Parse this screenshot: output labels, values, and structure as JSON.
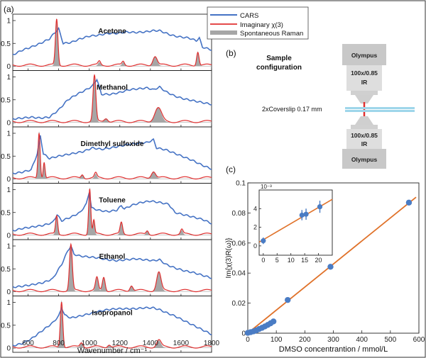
{
  "figure": {
    "panel_labels": [
      "(a)",
      "(b)",
      "(c)"
    ]
  },
  "legend": {
    "items": [
      {
        "label": "CARS",
        "color": "#4472c4",
        "style": "line"
      },
      {
        "label": "Imaginary χ(3)",
        "color": "#e03030",
        "style": "line"
      },
      {
        "label": "Spontaneous Raman",
        "color": "#a6a6a6",
        "style": "patch"
      }
    ]
  },
  "spectra": {
    "xlabel": "Wavenumber / cm⁻¹",
    "xlim": [
      500,
      1800
    ],
    "xticks": [
      600,
      800,
      1000,
      1200,
      1400,
      1600,
      1800
    ],
    "yticks": [
      "0",
      "0.5",
      "1"
    ],
    "panels": [
      {
        "name": "Acetone",
        "peaks": [
          [
            787,
            1,
            8
          ],
          [
            1066,
            0.08,
            8
          ],
          [
            1222,
            0.08,
            8
          ],
          [
            1430,
            0.2,
            14
          ],
          [
            1710,
            0.3,
            8
          ]
        ],
        "cars": [
          [
            500,
            0.25
          ],
          [
            560,
            0.35
          ],
          [
            620,
            0.42
          ],
          [
            680,
            0.5
          ],
          [
            740,
            0.6
          ],
          [
            770,
            0.72
          ],
          [
            800,
            0.82
          ],
          [
            830,
            0.5
          ],
          [
            880,
            0.52
          ],
          [
            940,
            0.6
          ],
          [
            1000,
            0.66
          ],
          [
            1060,
            0.68
          ],
          [
            1120,
            0.72
          ],
          [
            1180,
            0.72
          ],
          [
            1240,
            0.75
          ],
          [
            1300,
            0.74
          ],
          [
            1360,
            0.75
          ],
          [
            1420,
            0.78
          ],
          [
            1460,
            0.78
          ],
          [
            1520,
            0.7
          ],
          [
            1560,
            0.66
          ],
          [
            1600,
            0.64
          ],
          [
            1650,
            0.62
          ],
          [
            1700,
            0.56
          ],
          [
            1720,
            0.62
          ],
          [
            1740,
            0.42
          ],
          [
            1800,
            0.36
          ]
        ]
      },
      {
        "name": "Methanol",
        "peaks": [
          [
            1034,
            1,
            9
          ],
          [
            1110,
            0.08,
            12
          ],
          [
            1450,
            0.3,
            22
          ]
        ],
        "cars": [
          [
            500,
            0.08
          ],
          [
            560,
            0.1
          ],
          [
            620,
            0.12
          ],
          [
            680,
            0.1
          ],
          [
            740,
            0.12
          ],
          [
            800,
            0.28
          ],
          [
            860,
            0.5
          ],
          [
            920,
            0.62
          ],
          [
            980,
            0.72
          ],
          [
            1020,
            0.8
          ],
          [
            1050,
            0.95
          ],
          [
            1080,
            0.62
          ],
          [
            1140,
            0.62
          ],
          [
            1200,
            0.66
          ],
          [
            1260,
            0.72
          ],
          [
            1320,
            0.74
          ],
          [
            1380,
            0.76
          ],
          [
            1420,
            0.72
          ],
          [
            1460,
            0.78
          ],
          [
            1500,
            0.68
          ],
          [
            1560,
            0.58
          ],
          [
            1620,
            0.52
          ],
          [
            1680,
            0.48
          ],
          [
            1740,
            0.44
          ],
          [
            1800,
            0.4
          ]
        ]
      },
      {
        "name": "Dimethyl sulfoxide",
        "peaks": [
          [
            672,
            1,
            7
          ],
          [
            705,
            0.35,
            6
          ],
          [
            955,
            0.08,
            8
          ],
          [
            1042,
            0.1,
            8
          ],
          [
            1420,
            0.15,
            14
          ]
        ],
        "cars": [
          [
            500,
            0.12
          ],
          [
            560,
            0.15
          ],
          [
            620,
            0.2
          ],
          [
            660,
            0.55
          ],
          [
            680,
            0.95
          ],
          [
            700,
            0.55
          ],
          [
            740,
            0.45
          ],
          [
            800,
            0.5
          ],
          [
            880,
            0.55
          ],
          [
            960,
            0.6
          ],
          [
            1020,
            0.68
          ],
          [
            1080,
            0.65
          ],
          [
            1140,
            0.68
          ],
          [
            1200,
            0.72
          ],
          [
            1260,
            0.76
          ],
          [
            1320,
            0.78
          ],
          [
            1380,
            0.8
          ],
          [
            1420,
            0.86
          ],
          [
            1440,
            0.68
          ],
          [
            1500,
            0.64
          ],
          [
            1560,
            0.56
          ],
          [
            1620,
            0.48
          ],
          [
            1680,
            0.4
          ],
          [
            1740,
            0.3
          ],
          [
            1800,
            0.22
          ]
        ]
      },
      {
        "name": "Toluene",
        "peaks": [
          [
            787,
            0.4,
            7
          ],
          [
            1003,
            1,
            7
          ],
          [
            1030,
            0.3,
            6
          ],
          [
            1210,
            0.25,
            8
          ],
          [
            1380,
            0.08,
            8
          ],
          [
            1605,
            0.1,
            8
          ]
        ],
        "cars": [
          [
            500,
            0.1
          ],
          [
            560,
            0.15
          ],
          [
            620,
            0.18
          ],
          [
            700,
            0.22
          ],
          [
            760,
            0.28
          ],
          [
            790,
            0.45
          ],
          [
            820,
            0.32
          ],
          [
            880,
            0.4
          ],
          [
            940,
            0.5
          ],
          [
            980,
            0.68
          ],
          [
            1000,
            0.95
          ],
          [
            1015,
            0.6
          ],
          [
            1060,
            0.55
          ],
          [
            1120,
            0.52
          ],
          [
            1180,
            0.55
          ],
          [
            1210,
            0.65
          ],
          [
            1230,
            0.58
          ],
          [
            1280,
            0.66
          ],
          [
            1340,
            0.72
          ],
          [
            1400,
            0.75
          ],
          [
            1460,
            0.72
          ],
          [
            1520,
            0.68
          ],
          [
            1560,
            0.5
          ],
          [
            1620,
            0.45
          ],
          [
            1680,
            0.4
          ],
          [
            1740,
            0.35
          ],
          [
            1800,
            0.26
          ]
        ]
      },
      {
        "name": "Ethanol",
        "peaks": [
          [
            880,
            1,
            9
          ],
          [
            1050,
            0.28,
            9
          ],
          [
            1095,
            0.3,
            9
          ],
          [
            1276,
            0.12,
            10
          ],
          [
            1455,
            0.4,
            14
          ]
        ],
        "cars": [
          [
            500,
            0.1
          ],
          [
            560,
            0.12
          ],
          [
            620,
            0.15
          ],
          [
            700,
            0.2
          ],
          [
            760,
            0.28
          ],
          [
            820,
            0.6
          ],
          [
            860,
            0.9
          ],
          [
            880,
            1.0
          ],
          [
            900,
            0.82
          ],
          [
            940,
            0.78
          ],
          [
            1000,
            0.76
          ],
          [
            1060,
            0.74
          ],
          [
            1120,
            0.7
          ],
          [
            1180,
            0.68
          ],
          [
            1240,
            0.7
          ],
          [
            1300,
            0.72
          ],
          [
            1360,
            0.7
          ],
          [
            1420,
            0.68
          ],
          [
            1460,
            0.7
          ],
          [
            1500,
            0.6
          ],
          [
            1560,
            0.52
          ],
          [
            1620,
            0.46
          ],
          [
            1680,
            0.42
          ],
          [
            1740,
            0.36
          ],
          [
            1800,
            0.3
          ]
        ]
      },
      {
        "name": "Isopropanol",
        "peaks": [
          [
            819,
            1,
            8
          ],
          [
            950,
            0.1,
            10
          ],
          [
            1130,
            0.06,
            10
          ],
          [
            1455,
            0.15,
            14
          ]
        ],
        "cars": [
          [
            500,
            0.05
          ],
          [
            560,
            0.1
          ],
          [
            620,
            0.2
          ],
          [
            700,
            0.4
          ],
          [
            760,
            0.55
          ],
          [
            800,
            0.7
          ],
          [
            820,
            0.88
          ],
          [
            840,
            0.72
          ],
          [
            880,
            0.66
          ],
          [
            940,
            0.7
          ],
          [
            1000,
            0.75
          ],
          [
            1060,
            0.8
          ],
          [
            1120,
            0.84
          ],
          [
            1180,
            0.86
          ],
          [
            1240,
            0.86
          ],
          [
            1300,
            0.86
          ],
          [
            1360,
            0.88
          ],
          [
            1420,
            0.88
          ],
          [
            1460,
            0.84
          ],
          [
            1500,
            0.78
          ],
          [
            1560,
            0.7
          ],
          [
            1620,
            0.6
          ],
          [
            1680,
            0.5
          ],
          [
            1740,
            0.4
          ],
          [
            1800,
            0.3
          ]
        ]
      }
    ]
  },
  "setup": {
    "title_line1": "Sample",
    "title_line2": "configuration",
    "top_brand": "Olympus",
    "top_mag": "100x/0.85",
    "top_ir": "IR",
    "coverslip": "2xCoverslip 0.17 mm",
    "bottom_mag": "100x/0.85",
    "bottom_ir": "IR",
    "bottom_brand": "Olympus"
  },
  "chart_data": {
    "type": "scatter",
    "xlabel": "DMSO concentrantion / mmol/L",
    "ylabel": "Im{χ(3)R(ω)}",
    "xlim": [
      0,
      600
    ],
    "ylim": [
      0,
      0.1
    ],
    "xticks": [
      0,
      100,
      200,
      300,
      400,
      500,
      600
    ],
    "yticks": [
      0,
      0.02,
      0.04,
      0.06,
      0.08,
      0.1
    ],
    "points": [
      [
        0,
        0.0002
      ],
      [
        10,
        0.0007
      ],
      [
        20,
        0.0012
      ],
      [
        30,
        0.0019
      ],
      [
        40,
        0.0028
      ],
      [
        50,
        0.0036
      ],
      [
        60,
        0.0045
      ],
      [
        70,
        0.0055
      ],
      [
        80,
        0.0066
      ],
      [
        90,
        0.0078
      ],
      [
        140,
        0.0221
      ],
      [
        290,
        0.0442
      ],
      [
        565,
        0.0869
      ]
    ],
    "fit": [
      [
        0,
        0.0
      ],
      [
        590,
        0.0905
      ]
    ],
    "inset": {
      "exponent": "10⁻³",
      "xlim": [
        -1.5,
        25
      ],
      "ylim": [
        -1,
        6
      ],
      "xticks": [
        0,
        5,
        10,
        15,
        20
      ],
      "yticks": [
        0,
        2,
        4
      ],
      "points": [
        [
          0,
          0.55,
          0.35
        ],
        [
          14,
          3.3,
          0.55
        ],
        [
          15.5,
          3.4,
          0.6
        ],
        [
          20.5,
          4.2,
          0.65
        ]
      ],
      "fit": [
        [
          -1.5,
          0.4
        ],
        [
          25,
          5.0
        ]
      ]
    }
  },
  "colors": {
    "cars": "#4472c4",
    "imag": "#e03030",
    "raman": "#a6a6a6",
    "fit": "#e0722a",
    "points": "#4a7cc4"
  }
}
